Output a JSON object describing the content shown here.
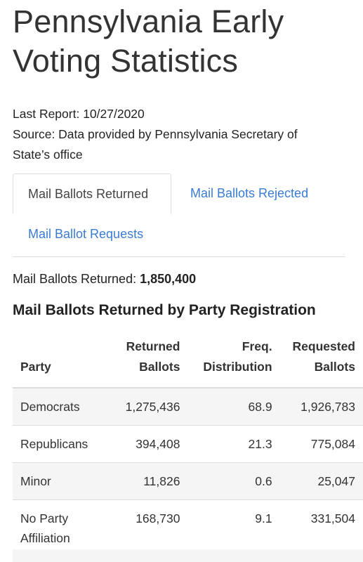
{
  "page": {
    "title_line1": "Pennsylvania Early",
    "title_line2": "Voting Statistics",
    "last_report": "Last Report: 10/27/2020",
    "source_line1": "Source: Data provided by Pennsylvania Secretary of",
    "source_line2": "State’s office"
  },
  "tabs": [
    {
      "label": "Mail Ballots Returned",
      "active": true
    },
    {
      "label": "Mail Ballots Rejected",
      "active": false
    },
    {
      "label": "Mail Ballot Requests",
      "active": false
    }
  ],
  "summary": {
    "label": "Mail Ballots Returned:",
    "value": "1,850,400"
  },
  "section_title": "Mail Ballots Returned by Party Registration",
  "table": {
    "headers": {
      "party": "Party",
      "returned_line1": "Returned",
      "returned_line2": "Ballots",
      "freq_line1": "Freq.",
      "freq_line2": "Distribution",
      "requested_line1": "Requested",
      "requested_line2": "Ballots"
    },
    "rows": [
      {
        "party_line1": "Democrats",
        "party_line2": "",
        "returned": "1,275,436",
        "freq": "68.9",
        "requested": "1,926,783"
      },
      {
        "party_line1": "Republicans",
        "party_line2": "",
        "returned": "394,408",
        "freq": "21.3",
        "requested": "775,084"
      },
      {
        "party_line1": "Minor",
        "party_line2": "",
        "returned": "11,826",
        "freq": "0.6",
        "requested": "25,047"
      },
      {
        "party_line1": "No Party",
        "party_line2": "Affiliation",
        "returned": "168,730",
        "freq": "9.1",
        "requested": "331,504"
      }
    ]
  },
  "colors": {
    "link": "#3a7bd5",
    "border": "#dddddd",
    "stripe": "#f5f5f5",
    "text": "#222222"
  }
}
